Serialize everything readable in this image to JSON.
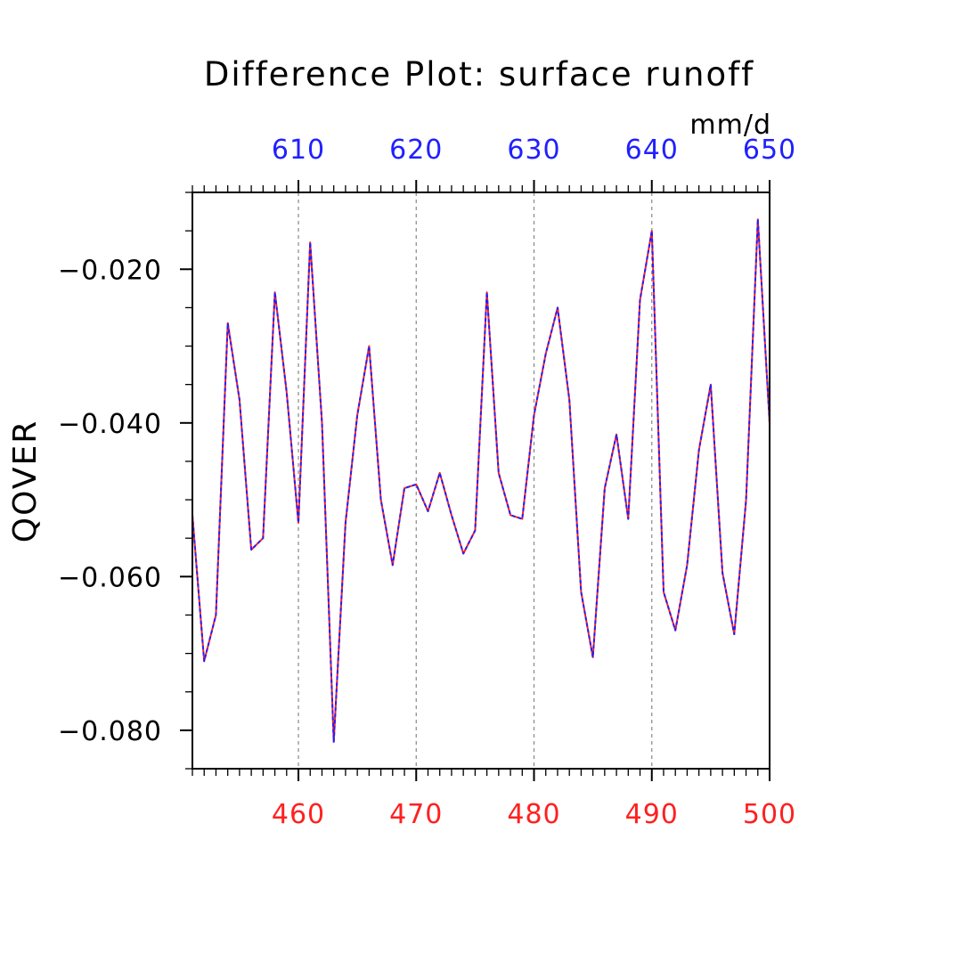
{
  "chart_data": {
    "type": "line",
    "title": "Difference Plot: surface runoff",
    "units": "mm/d",
    "ylabel": "QOVER",
    "x_bottom": {
      "ticks": [
        460,
        470,
        480,
        490,
        500
      ],
      "color": "#ff2020"
    },
    "x_top": {
      "ticks": [
        610,
        620,
        630,
        640,
        650
      ],
      "color": "#2020ff"
    },
    "xlim": [
      451,
      500
    ],
    "ylim": [
      -0.085,
      -0.01
    ],
    "y_ticks": [
      -0.02,
      -0.04,
      -0.06,
      -0.08
    ],
    "y_tick_labels": [
      "−0.020",
      "−0.040",
      "−0.060",
      "−0.080"
    ],
    "grid": "dashed vertical at labeled x ticks",
    "x": [
      451,
      452,
      453,
      454,
      455,
      456,
      457,
      458,
      459,
      460,
      461,
      462,
      463,
      464,
      465,
      466,
      467,
      468,
      469,
      470,
      471,
      472,
      473,
      474,
      475,
      476,
      477,
      478,
      479,
      480,
      481,
      482,
      483,
      484,
      485,
      486,
      487,
      488,
      489,
      490,
      491,
      492,
      493,
      494,
      495,
      496,
      497,
      498,
      499,
      500
    ],
    "series": [
      {
        "color": "#ff2020",
        "dash": "solid",
        "values": [
          -0.052,
          -0.071,
          -0.065,
          -0.027,
          -0.037,
          -0.0565,
          -0.055,
          -0.023,
          -0.036,
          -0.053,
          -0.0165,
          -0.04,
          -0.0815,
          -0.053,
          -0.039,
          -0.03,
          -0.05,
          -0.0585,
          -0.0485,
          -0.048,
          -0.0515,
          -0.0465,
          -0.052,
          -0.057,
          -0.054,
          -0.023,
          -0.0465,
          -0.052,
          -0.0525,
          -0.039,
          -0.031,
          -0.025,
          -0.037,
          -0.062,
          -0.0705,
          -0.0485,
          -0.0415,
          -0.0525,
          -0.024,
          -0.015,
          -0.062,
          -0.067,
          -0.0585,
          -0.0435,
          -0.035,
          -0.0595,
          -0.0675,
          -0.05,
          -0.0135,
          -0.04
        ]
      },
      {
        "color": "#2020ff",
        "dash": "dashed",
        "values": [
          -0.052,
          -0.071,
          -0.065,
          -0.027,
          -0.037,
          -0.0565,
          -0.055,
          -0.023,
          -0.036,
          -0.053,
          -0.0165,
          -0.04,
          -0.0815,
          -0.053,
          -0.039,
          -0.03,
          -0.05,
          -0.0585,
          -0.0485,
          -0.048,
          -0.0515,
          -0.0465,
          -0.052,
          -0.057,
          -0.054,
          -0.023,
          -0.0465,
          -0.052,
          -0.0525,
          -0.039,
          -0.031,
          -0.025,
          -0.037,
          -0.062,
          -0.0705,
          -0.0485,
          -0.0415,
          -0.0525,
          -0.024,
          -0.015,
          -0.062,
          -0.067,
          -0.0585,
          -0.0435,
          -0.035,
          -0.0595,
          -0.0675,
          -0.05,
          -0.0135,
          -0.04
        ]
      }
    ]
  }
}
